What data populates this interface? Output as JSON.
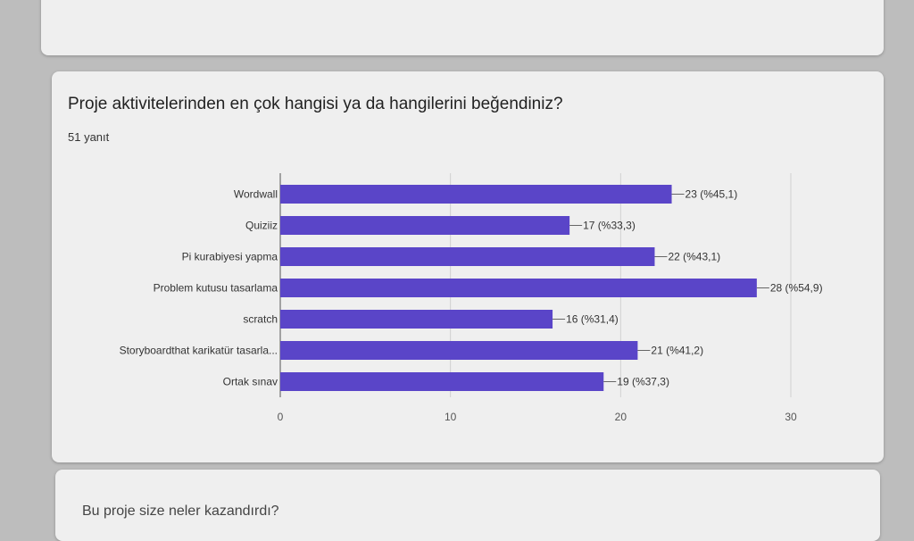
{
  "header_card": {},
  "question": {
    "title": "Proje aktivitelerinden en çok hangisi ya da hangilerini beğendiniz?",
    "responses": "51 yanıt"
  },
  "chart_data": {
    "type": "bar",
    "orientation": "horizontal",
    "categories": [
      "Wordwall",
      "Quiziiz",
      "Pi kurabiyesi yapma",
      "Problem kutusu tasarlama",
      "scratch",
      "Storyboardthat karikatür tasarla...",
      "Ortak sınav"
    ],
    "values": [
      23,
      17,
      22,
      28,
      16,
      21,
      19
    ],
    "value_labels": [
      "23 (%45,1)",
      "17 (%33,3)",
      "22 (%43,1)",
      "28 (%54,9)",
      "16 (%31,4)",
      "21 (%41,2)",
      "19 (%37,3)"
    ],
    "xticks": [
      "0",
      "10",
      "20",
      "30"
    ],
    "xlim": [
      0,
      30
    ],
    "bar_color": "#5a45c8",
    "grid": true
  },
  "next_card": {
    "title": "Bu proje size neler kazandırdı?"
  }
}
